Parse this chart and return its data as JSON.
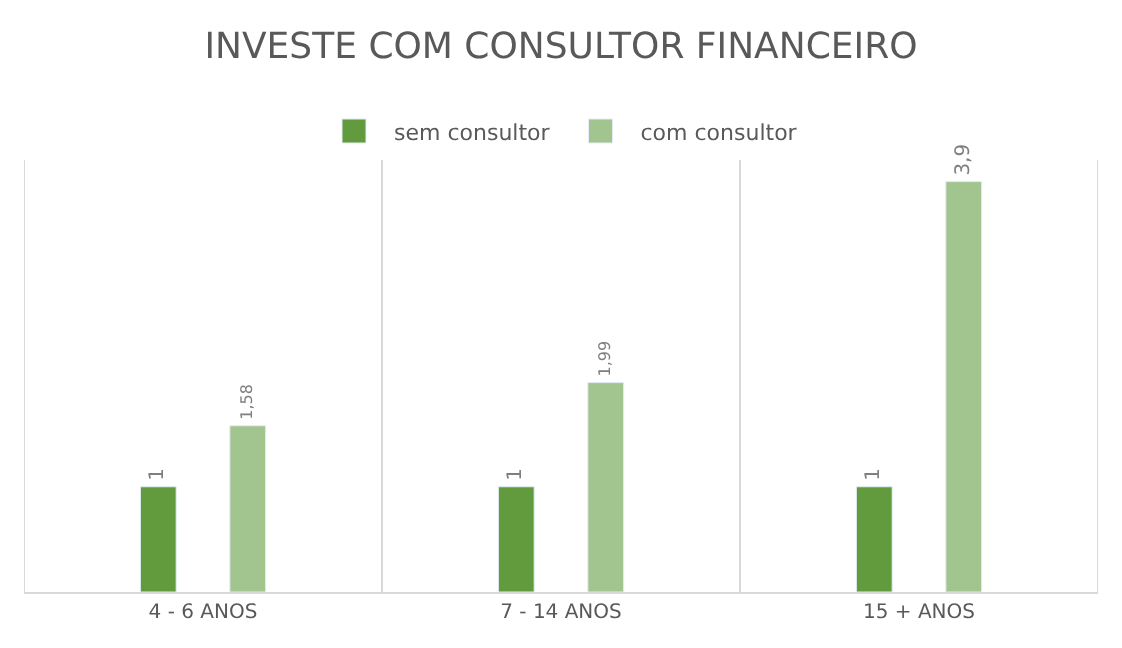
{
  "chart_data": {
    "type": "bar",
    "title": "INVESTE COM CONSULTOR FINANCEIRO",
    "categories": [
      "4 - 6 ANOS",
      "7 - 14 ANOS",
      "15 + ANOS"
    ],
    "series": [
      {
        "name": "sem consultor",
        "color": "#629a3e",
        "values": [
          1,
          1,
          1
        ],
        "value_labels": [
          "1",
          "1",
          "1"
        ]
      },
      {
        "name": "com consultor",
        "color": "#a2c48f",
        "values": [
          1.58,
          1.99,
          3.9
        ],
        "value_labels": [
          "1,58",
          "1,99",
          "3,9"
        ]
      }
    ],
    "legend": "top",
    "grid": "x",
    "tick_labels": "x"
  }
}
